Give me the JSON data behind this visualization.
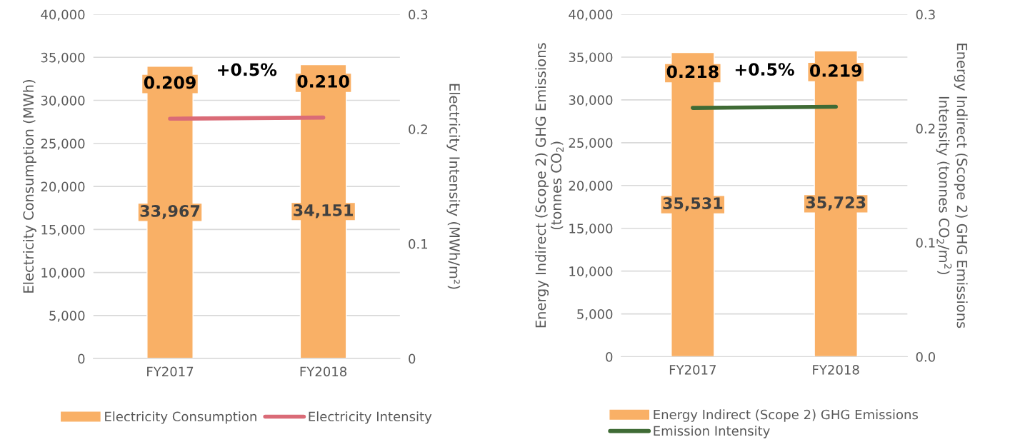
{
  "chart_data": [
    {
      "type": "bar",
      "categories": [
        "FY2017",
        "FY2018"
      ],
      "ylabel": "Electricity Consumption (MWh)",
      "y2label": "Electricity Intensity (MWh/m²)",
      "series": [
        {
          "name": "Electricity Consumption",
          "color": "#f9b066",
          "values": [
            33967,
            34151
          ],
          "value_labels": [
            "33,967",
            "34,151"
          ]
        },
        {
          "name": "Electricity Intensity",
          "type": "line",
          "axis": "y2",
          "color": "#da6b77",
          "values": [
            0.209,
            0.21
          ],
          "value_labels": [
            "0.209",
            "0.210"
          ]
        }
      ],
      "ylim": [
        0,
        40000
      ],
      "yticks": [
        {
          "value": 0,
          "label": "0"
        },
        {
          "value": 5000,
          "label": "5,000"
        },
        {
          "value": 10000,
          "label": "10,000"
        },
        {
          "value": 15000,
          "label": "15,000"
        },
        {
          "value": 20000,
          "label": "20,000"
        },
        {
          "value": 25000,
          "label": "25,000"
        },
        {
          "value": 30000,
          "label": "30,000"
        },
        {
          "value": 35000,
          "label": "35,000"
        },
        {
          "value": 40000,
          "label": "40,000"
        }
      ],
      "y2lim": [
        0,
        0.3
      ],
      "y2ticks": [
        0,
        0.1,
        0.2,
        0.3
      ],
      "annotations": [
        "+0.5%"
      ],
      "grid": "y",
      "legend": "bottom",
      "marker": "none"
    },
    {
      "type": "bar",
      "categories": [
        "FY2017",
        "FY2018"
      ],
      "ylabel": "Energy Indirect (Scope 2) GHG Emissions\n(tonnes CO$_{2}$)",
      "y2label": "Energy Indirect (Scope 2) GHG Emissions\nIntensity (tonnes CO$_{2}$/m$^{2}$)",
      "series": [
        {
          "name": "Energy Indirect (Scope 2) GHG Emissions",
          "color": "#f9b066",
          "values": [
            35531,
            35723
          ],
          "value_labels": [
            "35,531",
            "35,723"
          ]
        },
        {
          "name": "Emission Intensity",
          "type": "line",
          "axis": "y2",
          "color": "#3f6b35",
          "values": [
            0.218,
            0.219
          ],
          "value_labels": [
            "0.218",
            "0.219"
          ]
        }
      ],
      "ylim": [
        0,
        40000
      ],
      "yticks": [
        {
          "value": 0,
          "label": "0"
        },
        {
          "value": 5000,
          "label": "5,000"
        },
        {
          "value": 10000,
          "label": "10,000"
        },
        {
          "value": 15000,
          "label": "15,000"
        },
        {
          "value": 20000,
          "label": "20,000"
        },
        {
          "value": 25000,
          "label": "25,000"
        },
        {
          "value": 30000,
          "label": "30,000"
        },
        {
          "value": 35000,
          "label": "35,000"
        },
        {
          "value": 40000,
          "label": "40,000"
        }
      ],
      "y2lim": [
        0,
        0.3
      ],
      "y2ticks": [
        {
          "value": 0,
          "label": "0.0"
        },
        0.1,
        0.2,
        0.3
      ],
      "annotations": [
        "+0.5%"
      ],
      "grid": "y",
      "legend": "bottom",
      "marker": "none"
    }
  ]
}
